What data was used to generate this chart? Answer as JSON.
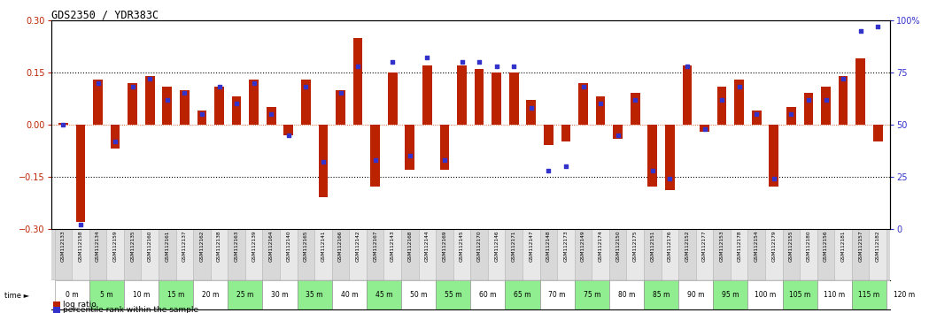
{
  "title": "GDS2350 / YDR383C",
  "xlabels": [
    "GSM112133",
    "GSM112158",
    "GSM112134",
    "GSM112159",
    "GSM112135",
    "GSM112160",
    "GSM112161",
    "GSM112137",
    "GSM112162",
    "GSM112138",
    "GSM112163",
    "GSM112139",
    "GSM112164",
    "GSM112140",
    "GSM112165",
    "GSM112141",
    "GSM112166",
    "GSM112142",
    "GSM112167",
    "GSM112143",
    "GSM112168",
    "GSM112144",
    "GSM112169",
    "GSM112145",
    "GSM112170",
    "GSM112146",
    "GSM112171",
    "GSM112147",
    "GSM112148",
    "GSM112173",
    "GSM112149",
    "GSM112174",
    "GSM112150",
    "GSM112175",
    "GSM112151",
    "GSM112176",
    "GSM112152",
    "GSM112177",
    "GSM112153",
    "GSM112178",
    "GSM112154",
    "GSM112179",
    "GSM112155",
    "GSM112180",
    "GSM112156",
    "GSM112181",
    "GSM112157",
    "GSM112182"
  ],
  "time_labels": [
    "0 m",
    "5 m",
    "10 m",
    "15 m",
    "20 m",
    "25 m",
    "30 m",
    "35 m",
    "40 m",
    "45 m",
    "50 m",
    "55 m",
    "60 m",
    "65 m",
    "70 m",
    "75 m",
    "80 m",
    "85 m",
    "90 m",
    "95 m",
    "100 m",
    "105 m",
    "110 m",
    "115 m",
    "120 m"
  ],
  "log_ratios": [
    0.005,
    -0.28,
    0.13,
    -0.07,
    0.12,
    0.14,
    0.11,
    0.1,
    0.04,
    0.11,
    0.08,
    0.13,
    0.05,
    -0.03,
    0.13,
    -0.21,
    0.1,
    0.25,
    -0.18,
    0.15,
    -0.13,
    0.17,
    -0.13,
    0.17,
    0.16,
    0.15,
    0.15,
    0.07,
    -0.06,
    -0.05,
    0.12,
    0.08,
    -0.04,
    0.09,
    -0.18,
    -0.19,
    0.17,
    -0.02,
    0.11,
    0.13,
    0.04,
    -0.18,
    0.05,
    0.09,
    0.11,
    0.14,
    0.19,
    -0.05
  ],
  "percentile_ranks": [
    50,
    2,
    70,
    42,
    68,
    72,
    62,
    65,
    55,
    68,
    60,
    70,
    55,
    45,
    68,
    32,
    65,
    78,
    33,
    80,
    35,
    82,
    33,
    80,
    80,
    78,
    78,
    58,
    28,
    30,
    68,
    60,
    45,
    62,
    28,
    24,
    78,
    48,
    62,
    68,
    55,
    24,
    55,
    62,
    62,
    72,
    95,
    97
  ],
  "ylim": [
    -0.3,
    0.3
  ],
  "y2lim": [
    0,
    100
  ],
  "yticks": [
    -0.3,
    -0.15,
    0.0,
    0.15,
    0.3
  ],
  "y2ticks": [
    0,
    25,
    50,
    75,
    100
  ],
  "hlines": [
    -0.15,
    0.0,
    0.15
  ],
  "bar_color": "#BB2200",
  "dot_color": "#3333CC",
  "bg_color": "#FFFFFF",
  "plot_bg": "#FFFFFF",
  "gsm_row_bg_a": "#D8D8D8",
  "gsm_row_bg_b": "#E8E8E8",
  "time_bg_white": "#FFFFFF",
  "time_bg_green": "#90EE90",
  "ylabel_left_color": "#BB2200",
  "ylabel_right_color": "#3333CC",
  "legend_log_ratio": "log ratio",
  "legend_percentile": "percentile rank within the sample"
}
